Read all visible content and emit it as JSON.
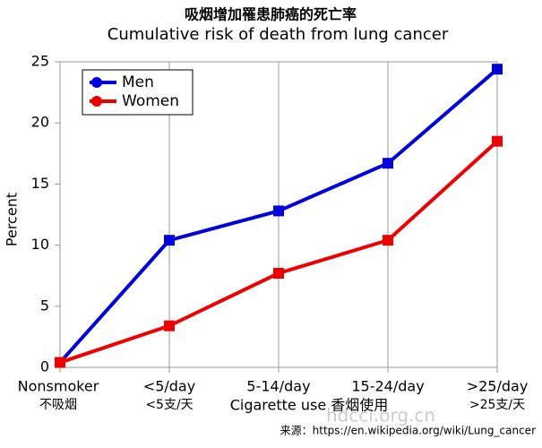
{
  "chart_data": {
    "type": "line",
    "title": "吸烟增加罹患肺癌的死亡率",
    "subtitle": "Cumulative risk of death from lung cancer",
    "y_label": "Percent",
    "x_label": "Cigarette use 香烟使用",
    "source": "来源：https://en.wikipedia.org/wiki/Lung_cancer",
    "watermark": "hdcci.org.cn",
    "categories": [
      [
        "Nonsmoker",
        "不吸烟"
      ],
      [
        "<5/day",
        "<5支/天"
      ],
      [
        "5-14/day",
        null
      ],
      [
        "15-24/day",
        null
      ],
      [
        ">25/day",
        ">25支/天"
      ]
    ],
    "series": [
      {
        "name": "Men",
        "color": "#0000dd",
        "values": [
          0.4,
          10.4,
          12.8,
          16.7,
          24.4
        ]
      },
      {
        "name": "Women",
        "color": "#ee0000",
        "values": [
          0.4,
          3.4,
          7.7,
          10.4,
          18.5
        ]
      }
    ],
    "ylim": [
      0,
      25
    ],
    "yticks": [
      0,
      5,
      10,
      15,
      20,
      25
    ],
    "grid": true,
    "legend": "upper left"
  }
}
